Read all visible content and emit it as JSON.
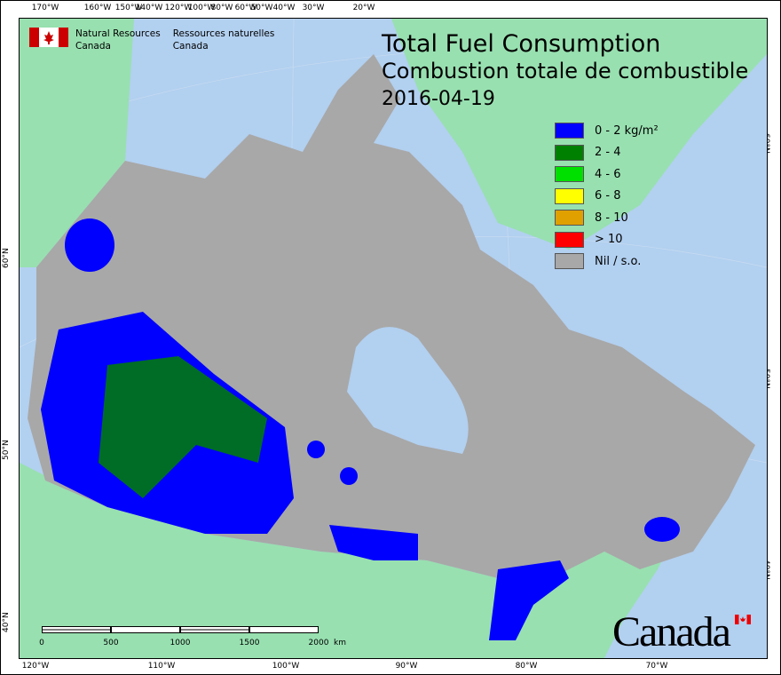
{
  "title": {
    "en": "Total Fuel Consumption",
    "fr": "Combustion totale de combustible",
    "date": "2016-04-19"
  },
  "agency": {
    "en_line1": "Natural Resources",
    "en_line2": "Canada",
    "fr_line1": "Ressources naturelles",
    "fr_line2": "Canada"
  },
  "wordmark": "Canada",
  "legend": [
    {
      "label": "0 - 2 kg/m²",
      "color": "#0000ff"
    },
    {
      "label": "2 - 4",
      "color": "#008000"
    },
    {
      "label": "4 - 6",
      "color": "#00e000"
    },
    {
      "label": "6 - 8",
      "color": "#ffff00"
    },
    {
      "label": "8 - 10",
      "color": "#e0a000"
    },
    {
      "label": "> 10",
      "color": "#ff0000"
    },
    {
      "label": "Nil / s.o.",
      "color": "#a8a8a8"
    }
  ],
  "top_ticks": [
    "170°W",
    "160°W",
    "150°W",
    "140°W",
    "120°W",
    "100°W",
    "80°W",
    "60°W",
    "50°W",
    "40°W",
    "30°W",
    "20°W"
  ],
  "bottom_ticks": [
    "120°W",
    "110°W",
    "100°W",
    "90°W",
    "80°W",
    "70°W"
  ],
  "left_ticks": [
    "60°N",
    "50°N",
    "40°N"
  ],
  "right_ticks": [
    "60°N",
    "50°N",
    "40°N"
  ],
  "scale": {
    "labels": [
      "0",
      "500",
      "1000",
      "1500",
      "2000"
    ],
    "unit": "km"
  },
  "colors": {
    "ocean": "#b2d0f0",
    "foreign_land": "#98e0b0",
    "canada": "#a8a8a8"
  }
}
